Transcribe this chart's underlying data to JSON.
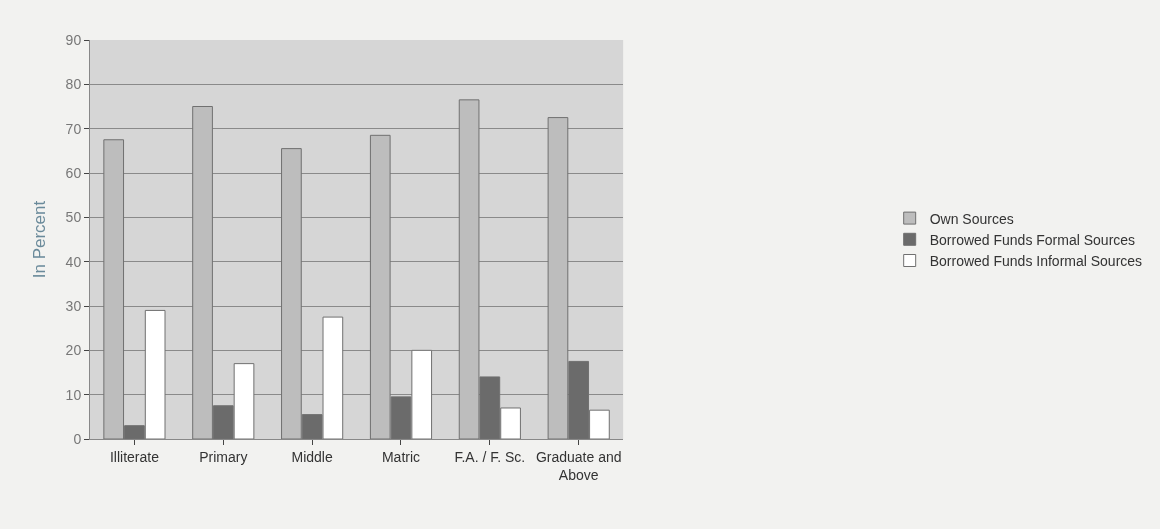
{
  "chart_data": {
    "type": "bar",
    "ylabel": "In Percent",
    "categories": [
      "Illiterate",
      "Primary",
      "Middle",
      "Matric",
      "F.A. / F. Sc.",
      "Graduate and Above"
    ],
    "series": [
      {
        "name": "Own Sources",
        "color": "#bdbdbd",
        "values": [
          67.5,
          75,
          65.5,
          68.5,
          76.5,
          72.5
        ]
      },
      {
        "name": "Borrowed Funds Formal Sources",
        "color": "#6b6b6b",
        "values": [
          3,
          7.5,
          5.5,
          9.5,
          14,
          17.5
        ]
      },
      {
        "name": "Borrowed Funds Informal Sources",
        "color": "#ffffff",
        "values": [
          29,
          17,
          27.5,
          20,
          7,
          6.5
        ]
      }
    ],
    "ylim": [
      0,
      90
    ],
    "yticks": [
      0,
      10,
      20,
      30,
      40,
      50,
      60,
      70,
      80,
      90
    ],
    "grid": "y",
    "legend": "right"
  }
}
